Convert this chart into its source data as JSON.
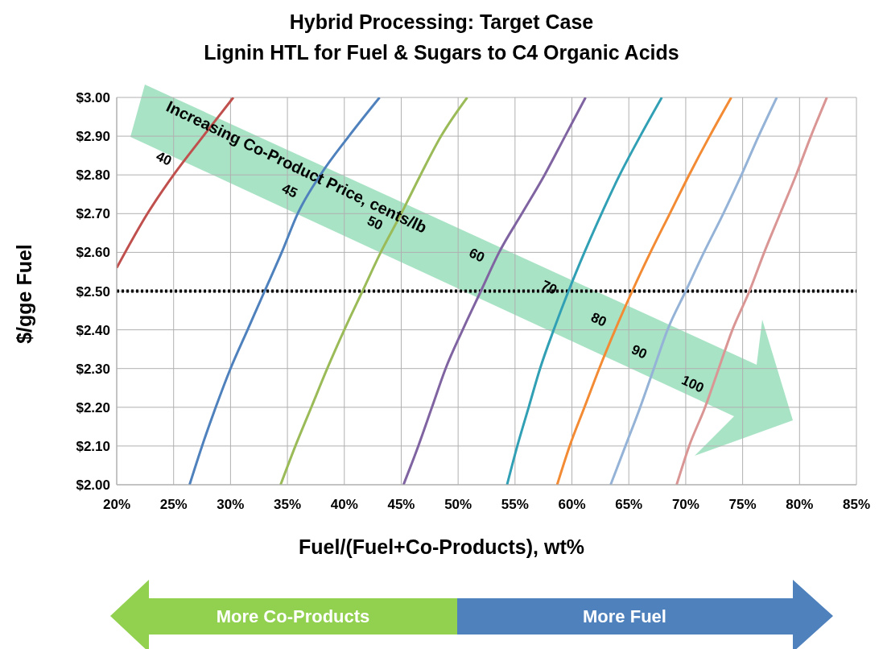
{
  "chart_data": {
    "type": "line",
    "title": "Hybrid Processing: Target Case",
    "subtitle": "Lignin HTL for Fuel & Sugars to C4 Organic Acids",
    "xlabel": "Fuel/(Fuel+Co-Products), wt%",
    "ylabel": "$/gge Fuel",
    "xlim": [
      20,
      85
    ],
    "xticks": [
      {
        "value": 20,
        "label": "20%"
      },
      {
        "value": 25,
        "label": "25%"
      },
      {
        "value": 30,
        "label": "30%"
      },
      {
        "value": 35,
        "label": "35%"
      },
      {
        "value": 40,
        "label": "40%"
      },
      {
        "value": 45,
        "label": "45%"
      },
      {
        "value": 50,
        "label": "50%"
      },
      {
        "value": 55,
        "label": "55%"
      },
      {
        "value": 60,
        "label": "60%"
      },
      {
        "value": 65,
        "label": "65%"
      },
      {
        "value": 70,
        "label": "70%"
      },
      {
        "value": 75,
        "label": "75%"
      },
      {
        "value": 80,
        "label": "80%"
      },
      {
        "value": 85,
        "label": "85%"
      }
    ],
    "ylim": [
      2,
      3
    ],
    "yticks": [
      {
        "value": 2,
        "label": "$2.00"
      },
      {
        "value": 2.1,
        "label": "$2.10"
      },
      {
        "value": 2.2,
        "label": "$2.20"
      },
      {
        "value": 2.3,
        "label": "$2.30"
      },
      {
        "value": 2.4,
        "label": "$2.40"
      },
      {
        "value": 2.5,
        "label": "$2.50"
      },
      {
        "value": 2.6,
        "label": "$2.60"
      },
      {
        "value": 2.7,
        "label": "$2.70"
      },
      {
        "value": 2.8,
        "label": "$2.80"
      },
      {
        "value": 2.9,
        "label": "$2.90"
      },
      {
        "value": 3,
        "label": "$3.00"
      }
    ],
    "grid": true,
    "marker": "none",
    "line_style": "solid",
    "series": [
      {
        "name": "40",
        "color": "#c0504d",
        "x": [
          20,
          22.7,
          25,
          27.6,
          30.25
        ],
        "values": [
          2.56,
          2.7,
          2.8,
          2.9,
          3.0
        ]
      },
      {
        "name": "45",
        "color": "#4f81bd",
        "x": [
          26.4,
          27.5,
          28.7,
          30,
          31.5,
          33,
          34.5,
          35.9,
          37.9,
          40.4,
          43.1
        ],
        "values": [
          2,
          2.1,
          2.2,
          2.3,
          2.4,
          2.5,
          2.6,
          2.7,
          2.8,
          2.9,
          3
        ]
      },
      {
        "name": "50",
        "color": "#9bbb59",
        "x": [
          34.4,
          35.7,
          37.1,
          38.5,
          40,
          41.6,
          43.2,
          45,
          46.7,
          48.5,
          50.8
        ],
        "values": [
          2,
          2.1,
          2.2,
          2.3,
          2.4,
          2.5,
          2.6,
          2.7,
          2.8,
          2.9,
          3
        ]
      },
      {
        "name": "60",
        "color": "#8064a2",
        "x": [
          45.2,
          46.5,
          47.7,
          48.9,
          50.4,
          52,
          53.6,
          55.6,
          57.6,
          59.4,
          61.2
        ],
        "values": [
          2,
          2.1,
          2.2,
          2.3,
          2.4,
          2.5,
          2.6,
          2.7,
          2.8,
          2.9,
          3
        ]
      },
      {
        "name": "70",
        "color": "#31a0b5",
        "x": [
          54.3,
          55.2,
          56.2,
          57.2,
          58.4,
          59.7,
          61.1,
          62.6,
          64.2,
          66,
          67.9
        ],
        "values": [
          2,
          2.1,
          2.2,
          2.3,
          2.4,
          2.5,
          2.6,
          2.7,
          2.8,
          2.9,
          3
        ]
      },
      {
        "name": "80",
        "color": "#f38b34",
        "x": [
          58.7,
          59.8,
          61.1,
          62.4,
          63.8,
          65.3,
          66.9,
          68.6,
          70.3,
          72.1,
          74
        ],
        "values": [
          2,
          2.1,
          2.2,
          2.3,
          2.4,
          2.5,
          2.6,
          2.7,
          2.8,
          2.9,
          3
        ]
      },
      {
        "name": "90",
        "color": "#95b3d7",
        "x": [
          63.4,
          64.7,
          66,
          67.2,
          68.4,
          70,
          71.6,
          73.3,
          74.9,
          76.4,
          78
        ],
        "values": [
          2,
          2.1,
          2.2,
          2.3,
          2.4,
          2.5,
          2.6,
          2.7,
          2.8,
          2.9,
          3
        ]
      },
      {
        "name": "100",
        "color": "#d99694",
        "x": [
          69.2,
          70.3,
          71.7,
          72.9,
          74.1,
          75.6,
          76.9,
          78.3,
          79.7,
          81,
          82.4
        ],
        "values": [
          2,
          2.1,
          2.2,
          2.3,
          2.4,
          2.5,
          2.6,
          2.7,
          2.8,
          2.9,
          3
        ]
      }
    ],
    "ref_lines": [
      {
        "axis": "y",
        "value": 2.5,
        "color": "#000000",
        "line_style": "dotted"
      }
    ],
    "annotations": [
      "Increasing Co-Product Price, cents/lb",
      "More Co-Products",
      "More Fuel"
    ]
  }
}
